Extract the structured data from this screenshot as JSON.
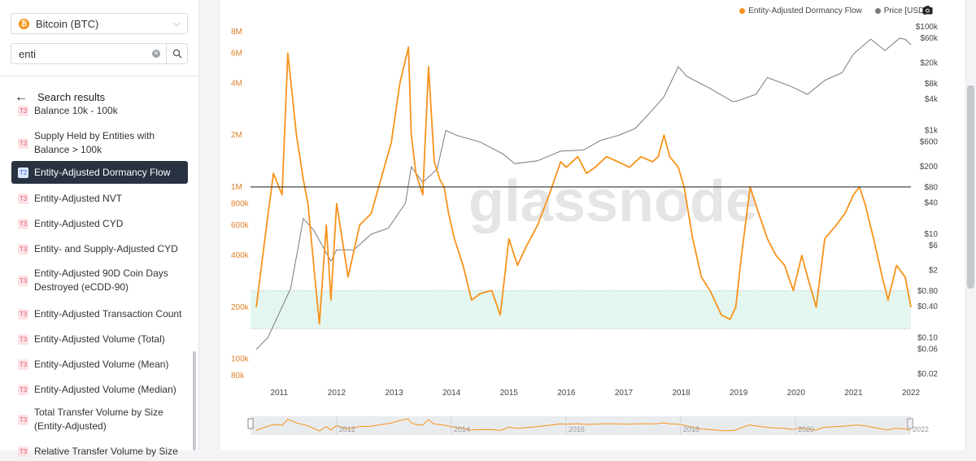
{
  "sidebar": {
    "asset": {
      "label": "Bitcoin (BTC)",
      "icon": "bitcoin-icon"
    },
    "search": {
      "value": "enti"
    },
    "results_header": "Search results",
    "items": [
      {
        "tier": "T3",
        "label": "Balance 10k - 100k"
      },
      {
        "tier": "T3",
        "label": "Supply Held by Entities with Balance > 100k"
      },
      {
        "tier": "T2",
        "label": "Entity-Adjusted Dormancy Flow",
        "active": true
      },
      {
        "tier": "T3",
        "label": "Entity-Adjusted NVT"
      },
      {
        "tier": "T3",
        "label": "Entity-Adjusted CYD"
      },
      {
        "tier": "T3",
        "label": "Entity- and Supply-Adjusted CYD"
      },
      {
        "tier": "T3",
        "label": "Entity-Adjusted 90D Coin Days Destroyed (eCDD-90)"
      },
      {
        "tier": "T3",
        "label": "Entity-Adjusted Transaction Count"
      },
      {
        "tier": "T3",
        "label": "Entity-Adjusted Volume (Total)"
      },
      {
        "tier": "T3",
        "label": "Entity-Adjusted Volume (Mean)"
      },
      {
        "tier": "T3",
        "label": "Entity-Adjusted Volume (Median)"
      },
      {
        "tier": "T3",
        "label": "Total Transfer Volume by Size (Entity-Adjusted)"
      },
      {
        "tier": "T3",
        "label": "Relative Transfer Volume by Size"
      }
    ]
  },
  "colors": {
    "dormancy": "#f7931a",
    "price": "#7a7a7a",
    "band": "#e3f6ef",
    "active_bg": "#283241"
  },
  "chart_data": {
    "type": "line",
    "watermark": "glassnode",
    "legend": [
      "Entity-Adjusted Dormancy Flow",
      "Price [USD]"
    ],
    "left_axis_ticks": [
      "8M",
      "6M",
      "4M",
      "2M",
      "1M",
      "800k",
      "600k",
      "400k",
      "200k",
      "100k",
      "80k"
    ],
    "right_axis_ticks": [
      "$100k",
      "$60k",
      "$20k",
      "$8k",
      "$4k",
      "$1k",
      "$600",
      "$200",
      "$80",
      "$40",
      "$10",
      "$6",
      "$2",
      "$0.80",
      "$0.40",
      "$0.10",
      "$0.06",
      "$0.02"
    ],
    "x_ticks": [
      "2011",
      "2012",
      "2013",
      "2014",
      "2015",
      "2016",
      "2017",
      "2018",
      "2019",
      "2020",
      "2021",
      "2022"
    ],
    "navigator_ticks": [
      "2012",
      "2014",
      "2016",
      "2018",
      "2020",
      "2022"
    ],
    "log_scale": true,
    "horizontal_line": 1000000,
    "band": [
      150000,
      250000
    ],
    "series": [
      {
        "name": "Entity-Adjusted Dormancy Flow",
        "x": [
          2010.6,
          2010.75,
          2010.9,
          2011.05,
          2011.15,
          2011.3,
          2011.42,
          2011.5,
          2011.62,
          2011.7,
          2011.82,
          2011.9,
          2012.0,
          2012.2,
          2012.4,
          2012.6,
          2012.8,
          2012.95,
          2013.1,
          2013.25,
          2013.3,
          2013.38,
          2013.5,
          2013.6,
          2013.7,
          2013.8,
          2013.87,
          2013.95,
          2014.05,
          2014.2,
          2014.35,
          2014.5,
          2014.7,
          2014.85,
          2015.0,
          2015.15,
          2015.3,
          2015.5,
          2015.7,
          2015.9,
          2016.0,
          2016.2,
          2016.35,
          2016.5,
          2016.7,
          2016.9,
          2017.1,
          2017.3,
          2017.5,
          2017.6,
          2017.7,
          2017.8,
          2017.95,
          2018.05,
          2018.2,
          2018.35,
          2018.5,
          2018.7,
          2018.85,
          2018.95,
          2019.05,
          2019.2,
          2019.35,
          2019.5,
          2019.65,
          2019.8,
          2019.95,
          2020.1,
          2020.2,
          2020.35,
          2020.5,
          2020.7,
          2020.85,
          2021.0,
          2021.1,
          2021.2,
          2021.35,
          2021.5,
          2021.6,
          2021.75,
          2021.9,
          2022.0
        ],
        "values": [
          200000,
          500000,
          1200000,
          900000,
          6000000,
          2000000,
          1100000,
          800000,
          300000,
          160000,
          600000,
          220000,
          800000,
          300000,
          600000,
          700000,
          1200000,
          1800000,
          4000000,
          6500000,
          2000000,
          1200000,
          900000,
          5000000,
          1400000,
          1100000,
          1000000,
          700000,
          500000,
          350000,
          220000,
          240000,
          250000,
          180000,
          500000,
          350000,
          450000,
          600000,
          900000,
          1400000,
          1300000,
          1500000,
          1200000,
          1300000,
          1500000,
          1400000,
          1300000,
          1500000,
          1400000,
          1500000,
          2000000,
          1500000,
          1300000,
          1000000,
          500000,
          300000,
          250000,
          180000,
          170000,
          200000,
          400000,
          1000000,
          700000,
          500000,
          400000,
          350000,
          250000,
          400000,
          300000,
          200000,
          500000,
          600000,
          700000,
          900000,
          1000000,
          800000,
          500000,
          300000,
          220000,
          350000,
          300000,
          200000
        ]
      },
      {
        "name": "Price [USD]",
        "x": [
          2010.6,
          2010.8,
          2011.0,
          2011.2,
          2011.42,
          2011.6,
          2011.9,
          2012.0,
          2012.3,
          2012.6,
          2012.9,
          2013.2,
          2013.3,
          2013.5,
          2013.75,
          2013.9,
          2014.1,
          2014.5,
          2014.9,
          2015.1,
          2015.5,
          2015.9,
          2016.3,
          2016.6,
          2016.9,
          2017.2,
          2017.5,
          2017.7,
          2017.95,
          2018.1,
          2018.5,
          2018.9,
          2019.0,
          2019.3,
          2019.5,
          2019.9,
          2020.2,
          2020.5,
          2020.8,
          2021.0,
          2021.3,
          2021.55,
          2021.8,
          2021.9,
          2022.0
        ],
        "values": [
          0.06,
          0.1,
          0.3,
          0.9,
          20,
          12,
          3,
          5,
          5,
          10,
          13,
          40,
          200,
          100,
          180,
          1000,
          800,
          600,
          350,
          230,
          260,
          400,
          420,
          650,
          800,
          1100,
          2500,
          4500,
          17000,
          11000,
          6500,
          3600,
          3800,
          5000,
          10500,
          7200,
          5000,
          9300,
          13000,
          30000,
          58000,
          35000,
          60000,
          58000,
          45000
        ]
      }
    ]
  }
}
